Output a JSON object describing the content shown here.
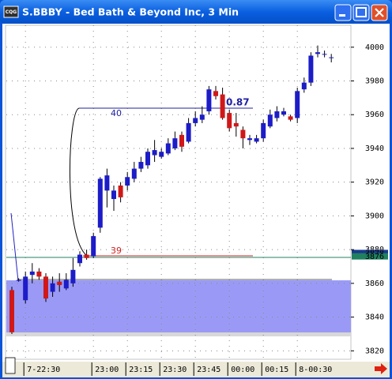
{
  "chart_data": {
    "type": "candlestick",
    "app_icon": "CQG",
    "title": "S.BBBY - Bed Bath & Beyond Inc, 3 Min",
    "categories": [
      null,
      null,
      "7-22:30",
      null,
      null,
      null,
      null,
      null,
      null,
      null,
      null,
      null,
      "23:00",
      null,
      null,
      null,
      null,
      "23:15",
      null,
      null,
      null,
      null,
      "23:30",
      null,
      null,
      null,
      null,
      "23:45",
      null,
      null,
      null,
      null,
      "00:00",
      null,
      null,
      null,
      null,
      "00:15",
      null,
      null,
      null,
      null,
      "8-00:30",
      null,
      null,
      null,
      null,
      null
    ],
    "open": [
      3856,
      3862,
      3850,
      3865,
      3867,
      3864,
      3855,
      3861,
      3857,
      3860,
      3872,
      3877,
      3876,
      3893,
      3915,
      3910,
      3918,
      3918,
      3922,
      3928,
      3930,
      3936,
      3935,
      3937,
      3940,
      3948,
      3944,
      3955,
      3957,
      3962,
      3974,
      3972,
      3961,
      3955,
      3951,
      3945,
      3944,
      3946,
      3953,
      3958,
      3960,
      3959,
      3958,
      3975,
      3979,
      3996,
      3996,
      3994
    ],
    "high": [
      3858,
      3863,
      3867,
      3872,
      3869,
      3866,
      3864,
      3866,
      3866,
      3875,
      3879,
      3880,
      3890,
      3923,
      3928,
      3918,
      3920,
      3926,
      3932,
      3935,
      3940,
      3945,
      3940,
      3946,
      3950,
      3950,
      3958,
      3962,
      3965,
      3977,
      3977,
      3976,
      3963,
      3961,
      3953,
      3948,
      3948,
      3957,
      3963,
      3965,
      3964,
      3960,
      3976,
      3982,
      3997,
      4001,
      3998,
      3996
    ],
    "low": [
      3830,
      3861,
      3848,
      3860,
      3862,
      3849,
      3852,
      3855,
      3856,
      3858,
      3870,
      3874,
      3875,
      3890,
      3905,
      3903,
      3908,
      3915,
      3920,
      3926,
      3928,
      3932,
      3934,
      3936,
      3939,
      3938,
      3943,
      3953,
      3955,
      3960,
      3969,
      3957,
      3950,
      3947,
      3940,
      3942,
      3943,
      3944,
      3952,
      3956,
      3959,
      3956,
      3955,
      3973,
      3977,
      3994,
      3994,
      3991
    ],
    "close": [
      3831,
      3862,
      3864,
      3867,
      3864,
      3851,
      3860,
      3859,
      3862,
      3868,
      3877,
      3875,
      3888,
      3922,
      3924,
      3915,
      3911,
      3923,
      3928,
      3932,
      3938,
      3939,
      3938,
      3943,
      3946,
      3941,
      3955,
      3958,
      3960,
      3975,
      3971,
      3958,
      3952,
      3953,
      3946,
      3946,
      3946,
      3955,
      3960,
      3962,
      3962,
      3957,
      3974,
      3979,
      3995,
      3997,
      3996,
      3994
    ],
    "up_color": "#1c1cc8",
    "down_color": "#d01818",
    "ylim": [
      3815,
      4013
    ],
    "yticks": [
      3820,
      3840,
      3860,
      3880,
      3900,
      3920,
      3940,
      3960,
      3980,
      4000
    ],
    "grid": true,
    "annotations": [
      "40",
      "39",
      "0.87"
    ],
    "price_tags": [
      3878,
      3876
    ]
  }
}
